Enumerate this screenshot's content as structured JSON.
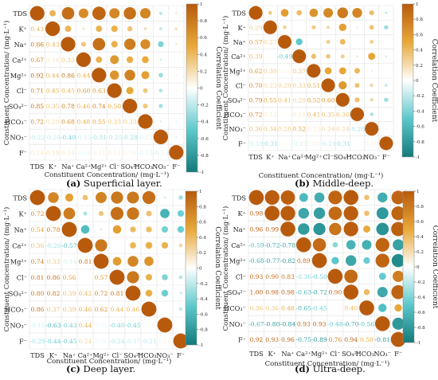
{
  "labels": [
    "TDS",
    "K⁺",
    "Na⁺",
    "Ca²⁺",
    "Mg²⁺",
    "Cl⁻",
    "SO₄²⁻",
    "HCO₃⁻",
    "NO₃⁻",
    "F⁻"
  ],
  "axis_x": "Constituent Concentration/ (mg·L⁻¹)",
  "axis_y": "Constituent Concentration/ (mg·L⁻¹)",
  "colorbar_label": "Correlation Coefficient",
  "colorbar_ticks": [
    "1",
    "0.8",
    "0.6",
    "0.4",
    "0.2",
    "0",
    "-0.2",
    "-0.4",
    "-0.6",
    "-0.8",
    "-1"
  ],
  "colors": {
    "pos_high": "#b85a0c",
    "pos_mid": "#e8a838",
    "neutral": "#ffffff",
    "neg_mid": "#5cc8cc",
    "neg_high": "#137a7a"
  },
  "chart_data": [
    {
      "type": "heatmap",
      "caption_letter": "(a)",
      "caption_text": " Superficial layer.",
      "lower": [
        [],
        [
          0.43
        ],
        [
          0.86,
          0.43
        ],
        [
          0.67,
          0.16,
          0.33
        ],
        [
          0.92,
          0.44,
          0.86,
          0.44
        ],
        [
          0.71,
          0.45,
          0.45,
          0.6,
          0.63
        ],
        [
          0.85,
          0.35,
          0.78,
          0.46,
          0.74,
          0.5
        ],
        [
          0.72,
          0.2,
          0.68,
          0.48,
          0.55,
          0.33,
          0.33
        ],
        [
          -0.22,
          -0.2,
          -0.4,
          -0.15,
          -0.31,
          -0.25,
          -0.28,
          -0.13
        ],
        [
          0.14,
          0.19,
          0.14,
          -0.08,
          0.11,
          0.11,
          0.08,
          -0.12,
          -0.13
        ]
      ]
    },
    {
      "type": "heatmap",
      "caption_letter": "(b)",
      "caption_text": " Middle-deep.",
      "lower": [
        [],
        [
          0.29
        ],
        [
          0.57,
          0.27
        ],
        [
          0.39,
          0.02,
          -0.49
        ],
        [
          0.62,
          0.3,
          0.06,
          0.37
        ],
        [
          0.7,
          0.23,
          0.29,
          0.33,
          0.51
        ],
        [
          0.79,
          0.55,
          0.41,
          0.29,
          0.52,
          0.6
        ],
        [
          0.72,
          0.13,
          0.02,
          0.15,
          0.41,
          0.35,
          0.36
        ],
        [
          0.36,
          0.34,
          0.28,
          0.52,
          0.13,
          0.24,
          0.24,
          -0.26
        ],
        [
          -0.18,
          -0.31,
          0.04,
          -0.15,
          0.08,
          -0.21,
          -0.31,
          0.01,
          0.1
        ]
      ]
    },
    {
      "type": "heatmap",
      "caption_letter": "(c)",
      "caption_text": " Deep layer.",
      "lower": [
        [],
        [
          0.72
        ],
        [
          0.54,
          0.78
        ],
        [
          0.36,
          -0.26,
          -0.57
        ],
        [
          0.74,
          0.33,
          -0.14,
          0.81
        ],
        [
          0.81,
          0.86,
          0.56,
          0.0,
          0.57
        ],
        [
          0.8,
          0.82,
          0.39,
          0.42,
          0.72,
          0.81
        ],
        [
          0.86,
          0.37,
          0.39,
          0.46,
          0.62,
          0.44,
          0.46
        ],
        [
          -0.15,
          -0.63,
          -0.43,
          0.44,
          -0.06,
          -0.4,
          -0.45,
          0.06
        ],
        [
          -0.29,
          -0.44,
          -0.45,
          0.24,
          -0.06,
          -0.24,
          -0.17,
          -0.21,
          0.06
        ]
      ]
    },
    {
      "type": "heatmap",
      "caption_letter": "(d)",
      "caption_text": " Ultra-deep.",
      "lower": [
        [],
        [
          0.98
        ],
        [
          0.96,
          0.99
        ],
        [
          -0.59,
          -0.72,
          -0.78
        ],
        [
          -0.68,
          -0.77,
          -0.82,
          0.89
        ],
        [
          0.93,
          0.9,
          0.83,
          -0.36,
          -0.5
        ],
        [
          1.0,
          0.98,
          0.98,
          -0.63,
          -0.72,
          0.9
        ],
        [
          0.36,
          0.36,
          0.48,
          -0.65,
          -0.45,
          0.0,
          0.4
        ],
        [
          -0.67,
          -0.8,
          -0.84,
          0.93,
          0.93,
          -0.48,
          -0.7,
          -0.56
        ],
        [
          0.92,
          0.93,
          0.96,
          -0.75,
          -0.89,
          0.76,
          0.94,
          0.5,
          -0.81
        ]
      ]
    }
  ]
}
